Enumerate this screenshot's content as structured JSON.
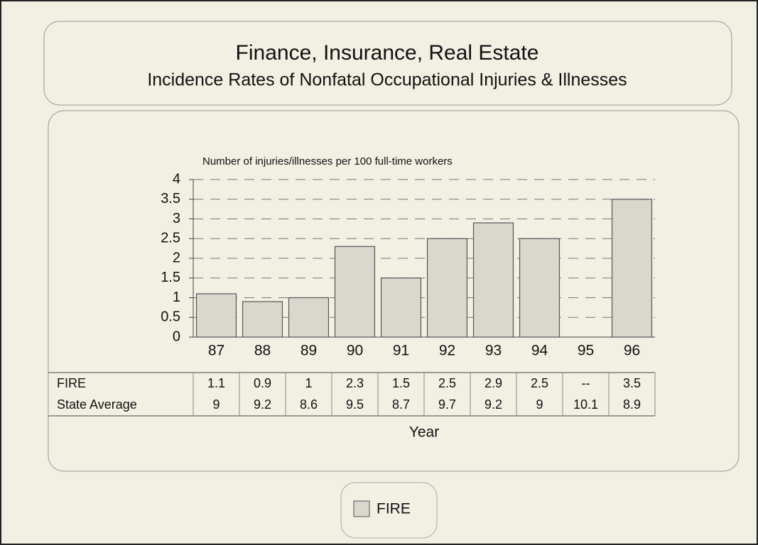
{
  "chart_data": {
    "type": "bar",
    "title": "Finance, Insurance, Real Estate",
    "subtitle": "Incidence Rates of Nonfatal Occupational Injuries & Illnesses",
    "y_label": "Number of injuries/illnesses per 100 full-time workers",
    "x_label": "Year",
    "categories": [
      "87",
      "88",
      "89",
      "90",
      "91",
      "92",
      "93",
      "94",
      "95",
      "96"
    ],
    "series": [
      {
        "name": "FIRE",
        "color": "#d9d8cf",
        "values": [
          1.1,
          0.9,
          1,
          2.3,
          1.5,
          2.5,
          2.9,
          2.5,
          null,
          3.5
        ],
        "value_labels": [
          "1.1",
          "0.9",
          "1",
          "2.3",
          "1.5",
          "2.5",
          "2.9",
          "2.5",
          "--",
          "3.5"
        ]
      },
      {
        "name": "State Average",
        "values": [
          9,
          9.2,
          8.6,
          9.5,
          8.7,
          9.7,
          9.2,
          9,
          10.1,
          8.9
        ]
      }
    ],
    "ylim": [
      0,
      4
    ],
    "yticks": [
      0,
      0.5,
      1,
      1.5,
      2,
      2.5,
      3,
      3.5,
      4
    ],
    "grid": true,
    "legend": "bottom"
  }
}
